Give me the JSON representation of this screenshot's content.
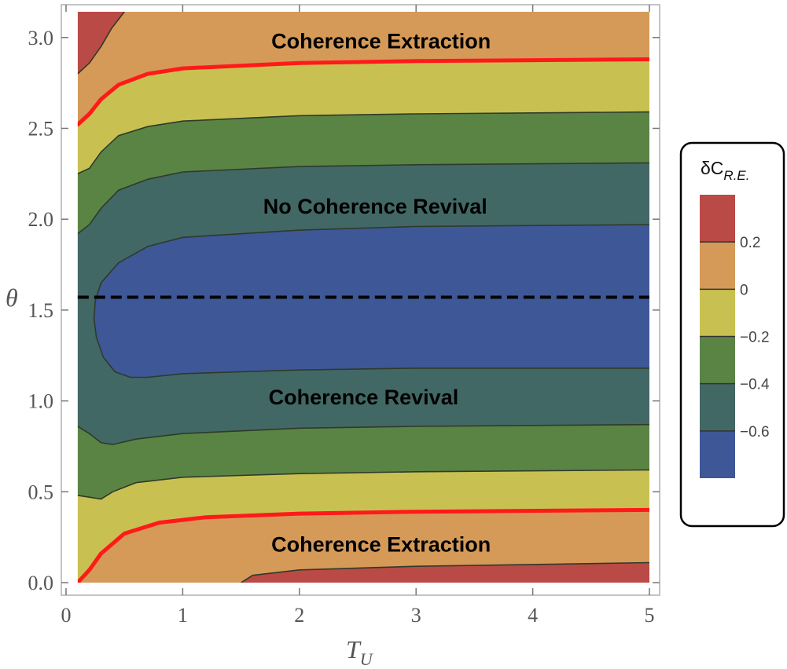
{
  "chart_data": {
    "type": "contour",
    "xlabel": "T",
    "xlabel_sub": "U",
    "ylabel": "θ",
    "xlim": [
      0,
      5
    ],
    "ylim": [
      0,
      3.14159
    ],
    "x_data_start": 0.1,
    "xticks": [
      0,
      1,
      2,
      3,
      4,
      5
    ],
    "xtick_labels": [
      "0",
      "1",
      "2",
      "3",
      "4",
      "5"
    ],
    "yticks": [
      0.0,
      0.5,
      1.0,
      1.5,
      2.0,
      2.5,
      3.0
    ],
    "ytick_labels": [
      "0.0",
      "0.5",
      "1.0",
      "1.5",
      "2.0",
      "2.5",
      "3.0"
    ],
    "levels": [
      -0.6,
      -0.4,
      -0.2,
      0,
      0.2
    ],
    "band_colors": [
      "#3e5797",
      "#426865",
      "#5a8444",
      "#c8c152",
      "#d59a58",
      "#ba4a45"
    ],
    "contour_line_color": "#2f3a2a",
    "zero_contour_color": "#ff1a1a",
    "dashed_line": {
      "theta": 1.5708,
      "color": "#000000"
    },
    "contours": {
      "c02_upper": [
        [
          0.1,
          2.8
        ],
        [
          0.2,
          2.86
        ],
        [
          0.3,
          2.95
        ],
        [
          0.39,
          3.05
        ],
        [
          0.45,
          3.1
        ],
        [
          0.5,
          3.14159
        ]
      ],
      "c02_lower": [
        [
          1.5,
          0.0
        ],
        [
          1.6,
          0.04
        ],
        [
          2.0,
          0.07
        ],
        [
          3.0,
          0.09
        ],
        [
          4.0,
          0.1
        ],
        [
          5.0,
          0.11
        ]
      ],
      "c0_upper": [
        [
          0.1,
          2.52
        ],
        [
          0.2,
          2.58
        ],
        [
          0.3,
          2.66
        ],
        [
          0.45,
          2.74
        ],
        [
          0.7,
          2.8
        ],
        [
          1.0,
          2.83
        ],
        [
          2.0,
          2.86
        ],
        [
          3.0,
          2.87
        ],
        [
          5.0,
          2.88
        ]
      ],
      "c0_lower": [
        [
          0.1,
          0.0
        ],
        [
          0.2,
          0.07
        ],
        [
          0.3,
          0.16
        ],
        [
          0.5,
          0.27
        ],
        [
          0.8,
          0.33
        ],
        [
          1.2,
          0.36
        ],
        [
          2.0,
          0.38
        ],
        [
          3.0,
          0.39
        ],
        [
          5.0,
          0.4
        ]
      ],
      "cm02_upper": [
        [
          0.1,
          2.25
        ],
        [
          0.2,
          2.28
        ],
        [
          0.3,
          2.37
        ],
        [
          0.45,
          2.46
        ],
        [
          0.7,
          2.51
        ],
        [
          1.0,
          2.54
        ],
        [
          2.0,
          2.57
        ],
        [
          3.0,
          2.58
        ],
        [
          5.0,
          2.59
        ]
      ],
      "cm02_lower": [
        [
          0.1,
          0.48
        ],
        [
          0.2,
          0.47
        ],
        [
          0.3,
          0.46
        ],
        [
          0.4,
          0.5
        ],
        [
          0.6,
          0.55
        ],
        [
          1.0,
          0.58
        ],
        [
          2.0,
          0.6
        ],
        [
          3.0,
          0.61
        ],
        [
          5.0,
          0.62
        ]
      ],
      "cm04_upper": [
        [
          0.1,
          1.92
        ],
        [
          0.2,
          1.97
        ],
        [
          0.3,
          2.06
        ],
        [
          0.45,
          2.16
        ],
        [
          0.7,
          2.22
        ],
        [
          1.0,
          2.26
        ],
        [
          2.0,
          2.29
        ],
        [
          3.0,
          2.3
        ],
        [
          5.0,
          2.31
        ]
      ],
      "cm04_lower": [
        [
          0.1,
          0.86
        ],
        [
          0.2,
          0.82
        ],
        [
          0.3,
          0.77
        ],
        [
          0.4,
          0.76
        ],
        [
          0.6,
          0.79
        ],
        [
          1.0,
          0.82
        ],
        [
          2.0,
          0.85
        ],
        [
          3.0,
          0.86
        ],
        [
          5.0,
          0.87
        ]
      ],
      "cm06_closed": [
        [
          5.0,
          1.97
        ],
        [
          3.0,
          1.96
        ],
        [
          2.0,
          1.94
        ],
        [
          1.0,
          1.9
        ],
        [
          0.7,
          1.85
        ],
        [
          0.45,
          1.76
        ],
        [
          0.3,
          1.65
        ],
        [
          0.25,
          1.55
        ],
        [
          0.24,
          1.45
        ],
        [
          0.26,
          1.35
        ],
        [
          0.32,
          1.24
        ],
        [
          0.42,
          1.16
        ],
        [
          0.55,
          1.13
        ],
        [
          0.7,
          1.13
        ],
        [
          1.0,
          1.15
        ],
        [
          2.0,
          1.17
        ],
        [
          3.0,
          1.18
        ],
        [
          5.0,
          1.18
        ]
      ]
    },
    "annotations": [
      {
        "text": "Coherence Extraction",
        "x": 2.7,
        "y": 2.98
      },
      {
        "text": "No Coherence Revival",
        "x": 2.65,
        "y": 2.07
      },
      {
        "text": "Coherence Revival",
        "x": 2.55,
        "y": 1.02
      },
      {
        "text": "Coherence Extraction",
        "x": 2.7,
        "y": 0.21
      }
    ],
    "legend": {
      "title_main": "δC",
      "title_sub": "R.E.",
      "tick_labels": [
        "0.2",
        "0",
        "−0.2",
        "−0.4",
        "−0.6"
      ],
      "tick_values": [
        0.2,
        0,
        -0.2,
        -0.4,
        -0.6
      ],
      "range": [
        -0.8,
        0.4
      ],
      "placement": "right"
    }
  }
}
